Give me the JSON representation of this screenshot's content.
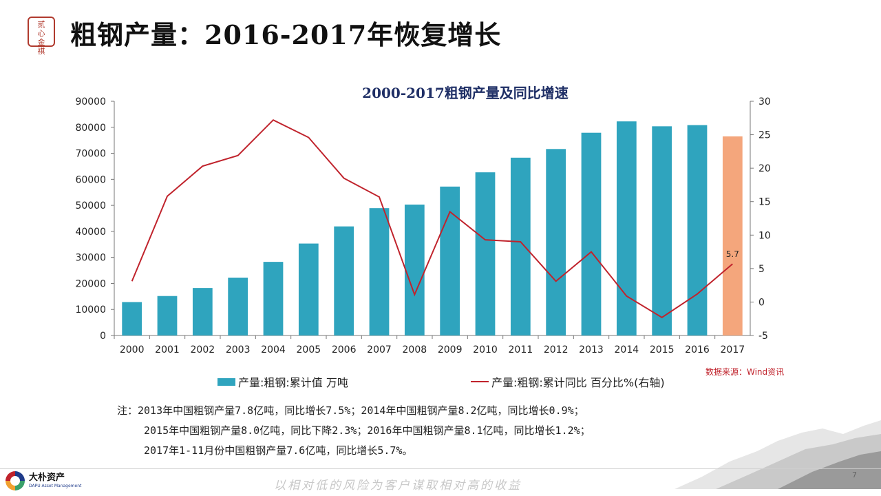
{
  "header": {
    "logo_chars": [
      "贰",
      "心",
      "金",
      "祺"
    ],
    "title": "粗钢产量：2016-2017年恢复增长"
  },
  "chart_data": {
    "type": "bar",
    "title": "2000-2017粗钢产量及同比增速",
    "categories": [
      "2000",
      "2001",
      "2002",
      "2003",
      "2004",
      "2005",
      "2006",
      "2007",
      "2008",
      "2009",
      "2010",
      "2011",
      "2012",
      "2013",
      "2014",
      "2015",
      "2016",
      "2017"
    ],
    "series": [
      {
        "name": "产量:粗钢:累计值 万吨",
        "type": "bar",
        "axis": "left",
        "color": "#2fa4be",
        "highlight_color": "#f4a67c",
        "highlight_index": 17,
        "values": [
          12850,
          15163,
          18237,
          22234,
          28291,
          35324,
          41915,
          48929,
          50306,
          57218,
          62696,
          68327,
          71654,
          77904,
          82270,
          80383,
          80837,
          76490
        ]
      },
      {
        "name": "产量:粗钢:累计同比 百分比%(右轴)",
        "type": "line",
        "axis": "right",
        "color": "#c0232c",
        "values": [
          3.1,
          15.8,
          20.3,
          21.9,
          27.2,
          24.6,
          18.5,
          15.7,
          1.1,
          13.5,
          9.3,
          9.0,
          3.1,
          7.5,
          0.9,
          -2.3,
          1.2,
          5.7
        ]
      }
    ],
    "data_labels": [
      {
        "series": 1,
        "index": 17,
        "text": "5.7"
      }
    ],
    "y_left": {
      "min": 0,
      "max": 90000,
      "step": 10000,
      "ticks": [
        "0",
        "10000",
        "20000",
        "30000",
        "40000",
        "50000",
        "60000",
        "70000",
        "80000",
        "90000"
      ]
    },
    "y_right": {
      "min": -5,
      "max": 30,
      "step": 5,
      "ticks": [
        "-5",
        "0",
        "5",
        "10",
        "15",
        "20",
        "25",
        "30"
      ]
    },
    "grid": false,
    "legend_position": "bottom"
  },
  "source": "数据来源：Wind资讯",
  "notes": [
    "注：2013年中国粗钢产量7.8亿吨，同比增长7.5%；2014年中国粗钢产量8.2亿吨，同比增长0.9%；",
    "2015年中国粗钢产量8.0亿吨，同比下降2.3%；2016年中国粗钢产量8.1亿吨，同比增长1.2%；",
    "2017年1-11月份中国粗钢产量7.6亿吨，同比增长5.7%。"
  ],
  "footer": {
    "brand_cn": "大朴资产",
    "brand_en": "DAPU Asset Management",
    "slogan": "以相对低的风险为客户谋取相对高的收益",
    "page": "7"
  }
}
